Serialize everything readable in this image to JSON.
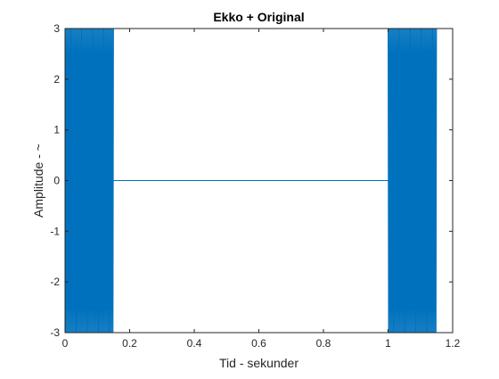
{
  "chart_data": {
    "type": "line",
    "title": "Ekko + Original",
    "xlabel": "Tid - sekunder",
    "ylabel": "Amplitude - ~",
    "xlim": [
      0,
      1.2
    ],
    "ylim": [
      -3,
      3
    ],
    "xticks": [
      0,
      0.2,
      0.4,
      0.6,
      0.8,
      1,
      1.2
    ],
    "xtick_labels": [
      "0",
      "0.2",
      "0.4",
      "0.6",
      "0.8",
      "1",
      "1.2"
    ],
    "yticks": [
      -3,
      -2,
      -1,
      0,
      1,
      2,
      3
    ],
    "ytick_labels": [
      "-3",
      "-2",
      "-1",
      "0",
      "1",
      "2",
      "3"
    ],
    "grid": false,
    "series": [
      {
        "color": "#0072BD",
        "segments": [
          {
            "kind": "oscillation",
            "x_start": 0,
            "x_end": 0.15,
            "amplitude": 3,
            "cycles": 50
          },
          {
            "kind": "flat",
            "x_start": 0.15,
            "x_end": 1.0,
            "value": 0
          },
          {
            "kind": "oscillation",
            "x_start": 1.0,
            "x_end": 1.15,
            "amplitude": 3,
            "cycles": 50
          }
        ]
      }
    ]
  }
}
